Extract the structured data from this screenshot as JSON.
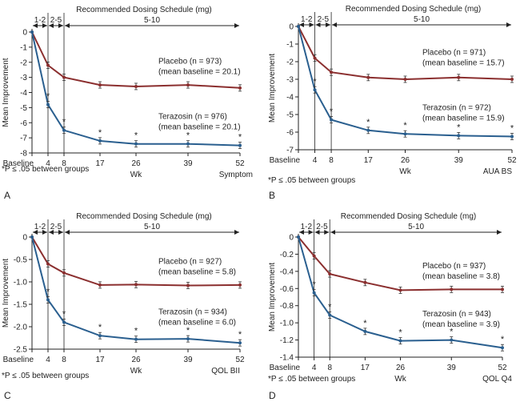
{
  "chart_data": [
    {
      "type": "line",
      "panel_letter": "A",
      "ylabel": "Mean Improvement",
      "xlabel": "Wk",
      "measure": "Symptom",
      "footnote": "*P ≤ .05 between groups",
      "schedule_title": "Recommended Dosing Schedule (mg)",
      "schedule_segments": [
        "1-2",
        "2-5",
        "5-10"
      ],
      "x": [
        0,
        4,
        8,
        17,
        26,
        39,
        52
      ],
      "x_tick_labels": [
        "Baseline",
        "4",
        "8",
        "17",
        "26",
        "39",
        "52"
      ],
      "ylim": [
        -8,
        0
      ],
      "y_ticks": [
        0,
        -1,
        -2,
        -3,
        -4,
        -5,
        -6,
        -7,
        -8
      ],
      "y_tick_labels": [
        "0",
        "-1",
        "-2",
        "-3",
        "-4",
        "-5",
        "-6",
        "-7",
        "-8"
      ],
      "series": [
        {
          "name": "Placebo",
          "color": "#8b2f2f",
          "values": [
            0,
            -2.2,
            -3.0,
            -3.5,
            -3.6,
            -3.5,
            -3.7
          ],
          "label_line1": "Placebo (n = 973)",
          "label_line2": "(mean baseline = 20.1)"
        },
        {
          "name": "Terazosin",
          "color": "#2a5f8f",
          "values": [
            0,
            -4.8,
            -6.5,
            -7.2,
            -7.4,
            -7.4,
            -7.5
          ],
          "label_line1": "Terazosin (n = 976)",
          "label_line2": "(mean baseline = 20.1)"
        }
      ],
      "significant_weeks": [
        4,
        8,
        17,
        26,
        39,
        52
      ]
    },
    {
      "type": "line",
      "panel_letter": "B",
      "ylabel": "Mean Improvement",
      "xlabel": "Wk",
      "measure": "AUA BS",
      "footnote": "*P ≤ .05 between groups",
      "schedule_title": "Recommended Dosing Schedule (mg)",
      "schedule_segments": [
        "1-2",
        "2-5",
        "5-10"
      ],
      "x": [
        0,
        4,
        8,
        17,
        26,
        39,
        52
      ],
      "x_tick_labels": [
        "Baseline",
        "4",
        "8",
        "17",
        "26",
        "39",
        "52"
      ],
      "ylim": [
        -7,
        0
      ],
      "y_ticks": [
        0,
        -1,
        -2,
        -3,
        -4,
        -5,
        -6,
        -7
      ],
      "y_tick_labels": [
        "0",
        "-1",
        "-2",
        "-3",
        "-4",
        "-5",
        "-6",
        "-7"
      ],
      "series": [
        {
          "name": "Placebo",
          "color": "#8b2f2f",
          "values": [
            0,
            -1.8,
            -2.6,
            -2.9,
            -3.0,
            -2.9,
            -3.0
          ],
          "label_line1": "Placebo (n = 971)",
          "label_line2": "(mean baseline = 15.7)"
        },
        {
          "name": "Terazosin",
          "color": "#2a5f8f",
          "values": [
            0,
            -3.6,
            -5.3,
            -5.9,
            -6.1,
            -6.2,
            -6.25
          ],
          "label_line1": "Terazosin (n = 972)",
          "label_line2": "(mean baseline = 15.9)"
        }
      ],
      "significant_weeks": [
        4,
        8,
        17,
        26,
        39,
        52
      ]
    },
    {
      "type": "line",
      "panel_letter": "C",
      "ylabel": "Mean Improvement",
      "xlabel": "Wk",
      "measure": "QOL BII",
      "footnote": "*P ≤ .05 between groups",
      "schedule_title": "Recommended Dosing Schedule (mg)",
      "schedule_segments": [
        "1-2",
        "2-5",
        "5-10"
      ],
      "x": [
        0,
        4,
        8,
        17,
        26,
        39,
        52
      ],
      "x_tick_labels": [
        "Baseline",
        "4",
        "8",
        "17",
        "26",
        "39",
        "52"
      ],
      "ylim": [
        -2.5,
        0
      ],
      "y_ticks": [
        0,
        -0.5,
        -1.0,
        -1.5,
        -2.0,
        -2.5
      ],
      "y_tick_labels": [
        "0",
        "-0.5",
        "-1.0",
        "-1.5",
        "-2.0",
        "-2.5"
      ],
      "series": [
        {
          "name": "Placebo",
          "color": "#8b2f2f",
          "values": [
            0,
            -0.6,
            -0.8,
            -1.07,
            -1.06,
            -1.08,
            -1.07
          ],
          "label_line1": "Placebo (n = 927)",
          "label_line2": "(mean baseline = 5.8)"
        },
        {
          "name": "Terazosin",
          "color": "#2a5f8f",
          "values": [
            0,
            -1.4,
            -1.9,
            -2.2,
            -2.28,
            -2.27,
            -2.36
          ],
          "label_line1": "Terazosin (n = 934)",
          "label_line2": "(mean baseline = 6.0)"
        }
      ],
      "significant_weeks": [
        4,
        8,
        17,
        26,
        39,
        52
      ]
    },
    {
      "type": "line",
      "panel_letter": "D",
      "ylabel": "Mean Improvement",
      "xlabel": "Wk",
      "measure": "QOL Q4",
      "footnote": "*P ≤ .05 between groups",
      "schedule_title": "Recommended Dosing Schedule (mg)",
      "schedule_segments": [
        "1-2",
        "2-5",
        "5-10"
      ],
      "x": [
        0,
        4,
        8,
        17,
        26,
        39,
        52
      ],
      "x_tick_labels": [
        "Baseline",
        "4",
        "8",
        "17",
        "26",
        "39",
        "52"
      ],
      "ylim": [
        -1.4,
        0
      ],
      "y_ticks": [
        0,
        -0.2,
        -0.4,
        -0.6,
        -0.8,
        -1.0,
        -1.2,
        -1.4
      ],
      "y_tick_labels": [
        "0",
        "-0.2",
        "-0.4",
        "-0.6",
        "-0.8",
        "-1.0",
        "-1.2",
        "-1.4"
      ],
      "series": [
        {
          "name": "Placebo",
          "color": "#8b2f2f",
          "values": [
            0,
            -0.22,
            -0.43,
            -0.53,
            -0.62,
            -0.61,
            -0.61
          ],
          "label_line1": "Placebo (n = 937)",
          "label_line2": "(mean baseline = 3.8)"
        },
        {
          "name": "Terazosin",
          "color": "#2a5f8f",
          "values": [
            0,
            -0.65,
            -0.91,
            -1.1,
            -1.21,
            -1.2,
            -1.29
          ],
          "label_line1": "Terazosin (n = 943)",
          "label_line2": "(mean baseline = 3.9)"
        }
      ],
      "significant_weeks": [
        4,
        8,
        17,
        26,
        39,
        52
      ]
    }
  ]
}
